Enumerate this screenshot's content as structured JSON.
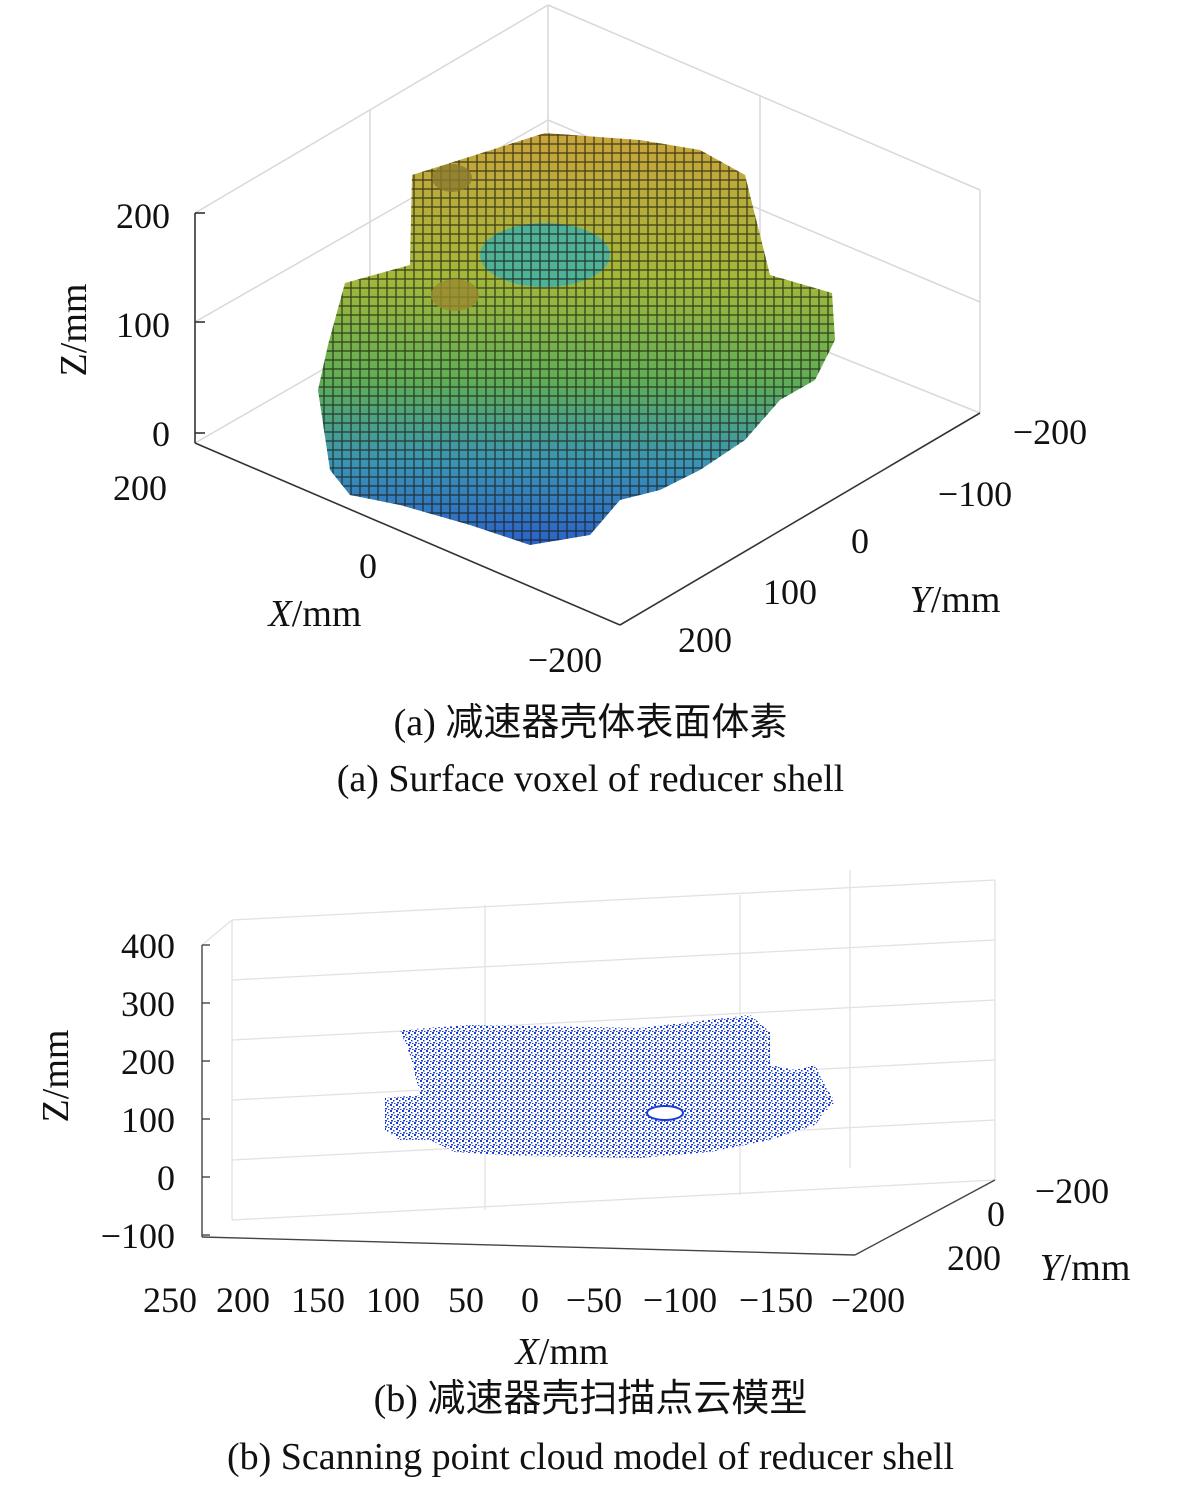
{
  "figure_a": {
    "caption_cn": "(a) 减速器壳体表面体素",
    "caption_en": "(a) Surface voxel of reducer shell",
    "z_label": "Z/mm",
    "x_label_var": "X",
    "x_label_unit": "/mm",
    "y_label_var": "Y",
    "y_label_unit": "/mm",
    "z_ticks": [
      "200",
      "100",
      "0"
    ],
    "x_ticks": [
      "200",
      "0",
      "−200"
    ],
    "y_ticks": [
      "−200",
      "−100",
      "0",
      "100",
      "200"
    ]
  },
  "figure_b": {
    "caption_cn": "(b) 减速器壳扫描点云模型",
    "caption_en": "(b) Scanning point cloud model of reducer shell",
    "z_label": "Z/mm",
    "x_label_var": "X",
    "x_label_unit": "/mm",
    "y_label_var": "Y",
    "y_label_unit": "/mm",
    "z_ticks": [
      "400",
      "300",
      "200",
      "100",
      "0",
      "−100"
    ],
    "x_ticks": [
      "250",
      "200",
      "150",
      "100",
      "50",
      "0",
      "−50",
      "−100",
      "−150",
      "−200"
    ],
    "y_ticks": [
      "−200",
      "0",
      "200"
    ]
  },
  "colors": {
    "voxel_top": "#c9a43a",
    "voxel_mid": "#6fb04a",
    "voxel_low": "#2f7fc4",
    "voxel_edge": "#1a1a10",
    "cloud": "#1a3fd0",
    "grid": "#e2e2e2",
    "axis": "#333333"
  }
}
